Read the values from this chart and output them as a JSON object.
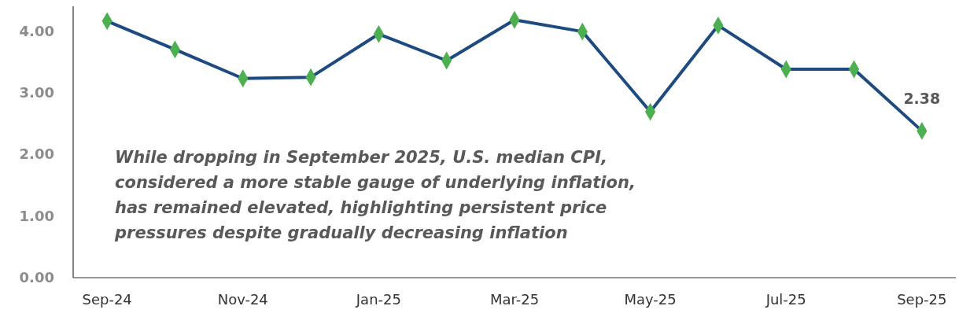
{
  "chart_data": {
    "type": "line",
    "categories": [
      "Sep-24",
      null,
      "Nov-24",
      null,
      "Jan-25",
      null,
      "Mar-25",
      null,
      "May-25",
      null,
      "Jul-25",
      null,
      "Sep-25"
    ],
    "series": [
      {
        "color": "#1d4a80",
        "values": [
          4.16,
          3.7,
          3.23,
          3.25,
          3.95,
          3.52,
          4.18,
          3.99,
          2.69,
          4.09,
          3.38,
          3.38,
          2.38
        ],
        "value_labels": [
          null,
          null,
          null,
          null,
          null,
          null,
          null,
          null,
          null,
          null,
          null,
          null,
          "2.38"
        ],
        "marker": "none"
      },
      {
        "type": "scatter",
        "color": "#4caf50",
        "marker": "diamond",
        "values": [
          4.16,
          3.7,
          3.23,
          3.25,
          3.95,
          3.52,
          4.18,
          3.99,
          2.69,
          4.09,
          3.38,
          3.38,
          2.38
        ]
      }
    ],
    "ylim": [
      0,
      4.4
    ],
    "yticks": [
      {
        "value": 0,
        "label": "0.00"
      },
      {
        "value": 1,
        "label": "1.00"
      },
      {
        "value": 2,
        "label": "2.00"
      },
      {
        "value": 3,
        "label": "3.00"
      },
      {
        "value": 4,
        "label": "4.00"
      }
    ],
    "grid": false,
    "annotations": [
      "While dropping in September 2025, U.S. median CPI,\nconsidered a more stable gauge of underlying inflation,\nhas remained elevated, highlighting persistent price\npressures despite gradually decreasing inflation"
    ]
  }
}
